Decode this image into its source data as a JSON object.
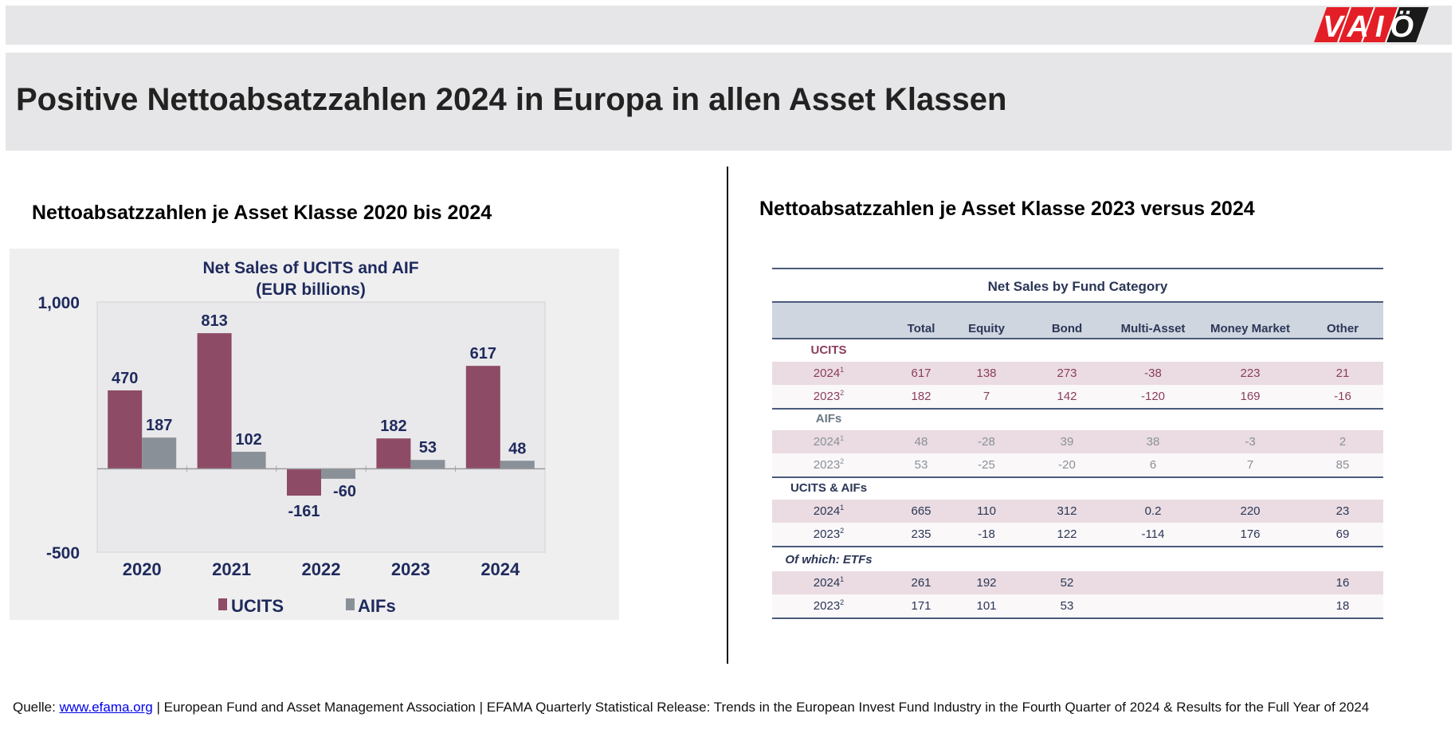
{
  "header": {
    "logo_text": "VAIÖ",
    "title": "Positive Nettoabsatzzahlen 2024 in Europa in allen Asset Klassen"
  },
  "left": {
    "subtitle": "Nettoabsatzzahlen je Asset Klasse 2020 bis 2024"
  },
  "right": {
    "subtitle": "Nettoabsatzzahlen je Asset Klasse 2023 versus 2024"
  },
  "colors": {
    "ucits": "#8e4b66",
    "aifs": "#8a9098",
    "navy": "#1f2a5c"
  },
  "chart_data": {
    "type": "bar",
    "title": "Net Sales of UCITS and AIF",
    "subtitle": "(EUR billions)",
    "categories": [
      "2020",
      "2021",
      "2022",
      "2023",
      "2024"
    ],
    "series": [
      {
        "name": "UCITS",
        "values": [
          470,
          813,
          -161,
          182,
          617
        ]
      },
      {
        "name": "AIFs",
        "values": [
          187,
          102,
          -60,
          53,
          48
        ]
      }
    ],
    "data_labels": {
      "UCITS": [
        "470",
        "813",
        "-161",
        "182",
        "617"
      ],
      "AIFs": [
        "187",
        "102",
        "-60",
        "53",
        "48"
      ]
    },
    "ylim": [
      -500,
      1000
    ],
    "yticks": [
      "1,000",
      "-500"
    ],
    "xlabel": "",
    "ylabel": "",
    "legend": "bottom"
  },
  "table": {
    "caption": "Net Sales by Fund Category",
    "columns": [
      "Total",
      "Equity",
      "Bond",
      "Multi-Asset",
      "Money Market",
      "Other"
    ],
    "groups": [
      {
        "label": "UCITS",
        "rows": [
          {
            "year": "2024",
            "note": "1",
            "values": [
              "617",
              "138",
              "273",
              "-38",
              "223",
              "21"
            ]
          },
          {
            "year": "2023",
            "note": "2",
            "values": [
              "182",
              "7",
              "142",
              "-120",
              "169",
              "-16"
            ]
          }
        ]
      },
      {
        "label": "AIFs",
        "rows": [
          {
            "year": "2024",
            "note": "1",
            "values": [
              "48",
              "-28",
              "39",
              "38",
              "-3",
              "2"
            ]
          },
          {
            "year": "2023",
            "note": "2",
            "values": [
              "53",
              "-25",
              "-20",
              "6",
              "7",
              "85"
            ]
          }
        ]
      },
      {
        "label": "UCITS & AIFs",
        "rows": [
          {
            "year": "2024",
            "note": "1",
            "values": [
              "665",
              "110",
              "312",
              "0.2",
              "220",
              "23"
            ]
          },
          {
            "year": "2023",
            "note": "2",
            "values": [
              "235",
              "-18",
              "122",
              "-114",
              "176",
              "69"
            ]
          }
        ]
      },
      {
        "label": "Of which: ETFs",
        "rows": [
          {
            "year": "2024",
            "note": "1",
            "values": [
              "261",
              "192",
              "52",
              "",
              "",
              "16"
            ]
          },
          {
            "year": "2023",
            "note": "2",
            "values": [
              "171",
              "101",
              "53",
              "",
              "",
              "18"
            ]
          }
        ]
      }
    ]
  },
  "footer": {
    "prefix": "Quelle: ",
    "link": "www.efama.org",
    "text": " | European Fund and Asset Management Association | EFAMA Quarterly Statistical Release: Trends in the European Invest Fund Industry in the Fourth Quarter of 2024 & Results for the Full Year of 2024"
  }
}
